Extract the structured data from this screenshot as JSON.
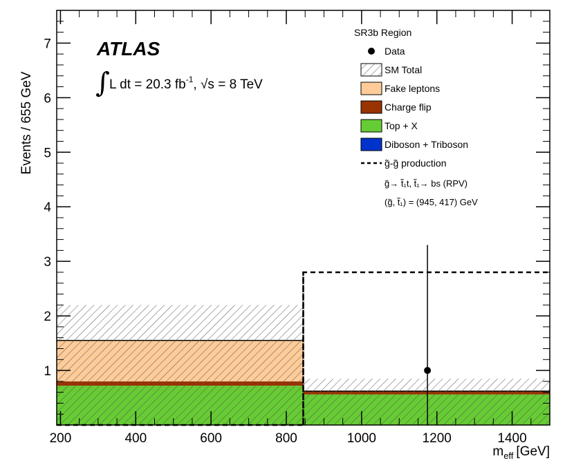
{
  "chart_data": {
    "type": "bar",
    "experiment": "ATLAS",
    "lumi_label": "L dt = 20.3 fb",
    "lumi_exponent": "-1",
    "energy_sep": ", ",
    "energy_label": "s = 8 TeV",
    "xlabel": "m",
    "xlabel_sub": "eff",
    "xlabel_unit": "[GeV]",
    "ylabel": "Events / 655 GeV",
    "xlim": [
      190,
      1500
    ],
    "ylim": [
      0,
      7.6
    ],
    "xticks": [
      200,
      400,
      600,
      800,
      1000,
      1200,
      1400
    ],
    "yticks": [
      1,
      2,
      3,
      4,
      5,
      6,
      7
    ],
    "bins": [
      [
        190,
        845
      ],
      [
        845,
        1500
      ]
    ],
    "stack": [
      {
        "name": "Top + X",
        "color": "#66cc33",
        "values": [
          0.72,
          0.56
        ]
      },
      {
        "name": "Charge flip",
        "color": "#993300",
        "values": [
          0.08,
          0.06
        ]
      },
      {
        "name": "Fake leptons",
        "color": "#ffcc99",
        "values": [
          0.75,
          0.0
        ]
      }
    ],
    "sm_total": {
      "name": "SM Total",
      "values": [
        1.55,
        0.62
      ],
      "uncertainty_band": [
        [
          0.0,
          2.2
        ],
        [
          0.0,
          0.85
        ]
      ]
    },
    "data_point": {
      "name": "Data",
      "x": 1175,
      "y": 1,
      "err": [
        0,
        3.3
      ]
    },
    "signal": {
      "name": "g̃-g̃ production",
      "values": [
        0.0,
        2.8
      ]
    },
    "legend": {
      "title": "SR3b Region",
      "entries": [
        {
          "label": "Data",
          "kind": "marker"
        },
        {
          "label": "SM Total",
          "kind": "hatch"
        },
        {
          "label": "Fake leptons",
          "kind": "fill",
          "color": "#ffcc99"
        },
        {
          "label": "Charge flip",
          "kind": "fill",
          "color": "#993300"
        },
        {
          "label": "Top + X",
          "kind": "fill",
          "color": "#66cc33"
        },
        {
          "label": "Diboson + Triboson",
          "kind": "fill",
          "color": "#0033cc"
        },
        {
          "label": "g̃-g̃ production",
          "kind": "dashed"
        }
      ],
      "notes": [
        "g̃→ t̃₁t, t̃₁→ bs (RPV)",
        "(g̃, t̃₁) = (945, 417) GeV"
      ]
    }
  }
}
